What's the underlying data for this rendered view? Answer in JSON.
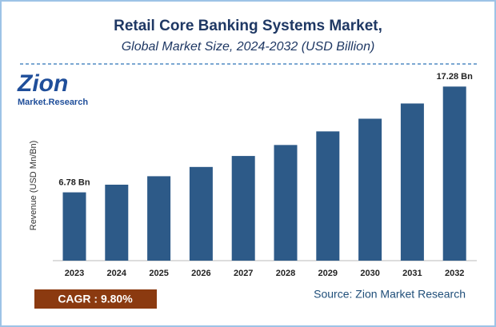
{
  "chart_data": {
    "type": "bar",
    "title": "Retail Core Banking Systems Market,",
    "subtitle": "Global Market Size, 2024-2032 (USD Billion)",
    "y_label": "Revenue (USD Mn/Bn)",
    "categories": [
      "2023",
      "2024",
      "2025",
      "2026",
      "2027",
      "2028",
      "2029",
      "2030",
      "2031",
      "2032"
    ],
    "values": [
      6.78,
      7.54,
      8.38,
      9.3,
      10.39,
      11.48,
      12.83,
      14.09,
      15.6,
      17.28
    ],
    "value_labels": [
      "6.78 Bn",
      null,
      null,
      null,
      null,
      null,
      null,
      null,
      null,
      "17.28 Bn"
    ],
    "color": "#2d5a88",
    "cagr": "CAGR : 9.80%",
    "source": "Source: Zion Market Research",
    "logo": {
      "name": "Zion",
      "tagline": "Market.Research"
    }
  }
}
